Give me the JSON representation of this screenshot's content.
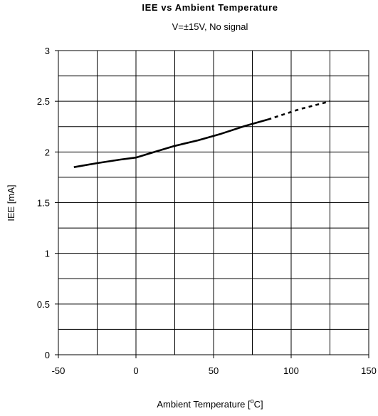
{
  "chart_data": {
    "type": "line",
    "title": "IEE vs Ambient Temperature",
    "subtitle": "V=±15V, No signal",
    "xlabel": "Ambient Temperature [",
    "xlabel_sup": "o",
    "xlabel_suffix": "C]",
    "ylabel": "IEE [mA]",
    "xlim": [
      -50,
      150
    ],
    "ylim": [
      0,
      3
    ],
    "x_major_ticks": [
      -50,
      0,
      50,
      100,
      150
    ],
    "x_tick_labels": [
      "-50",
      "0",
      "50",
      "100",
      "150"
    ],
    "x_minor_gridlines": [
      -25,
      25,
      75,
      125
    ],
    "y_major_ticks": [
      0,
      0.5,
      1,
      1.5,
      2,
      2.5,
      3
    ],
    "y_tick_labels": [
      "0",
      "0.5",
      "1",
      "1.5",
      "2",
      "2.5",
      "3"
    ],
    "y_minor_gridlines": [
      0.25,
      0.75,
      1.25,
      1.75,
      2.25,
      2.75
    ],
    "grid": true,
    "series": [
      {
        "style": "solid",
        "color": "#000000",
        "x": [
          -40,
          -25,
          -10,
          0,
          12,
          25,
          40,
          55,
          70,
          85
        ],
        "y": [
          1.85,
          1.89,
          1.925,
          1.945,
          2.0,
          2.06,
          2.115,
          2.18,
          2.255,
          2.32
        ]
      },
      {
        "style": "dashed",
        "color": "#000000",
        "x": [
          85,
          95,
          105,
          115,
          125
        ],
        "y": [
          2.32,
          2.37,
          2.42,
          2.46,
          2.5
        ]
      }
    ]
  }
}
